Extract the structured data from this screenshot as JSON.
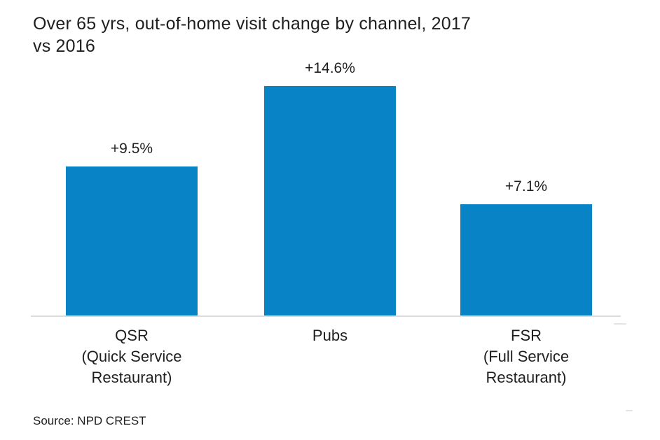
{
  "title_lines": [
    "Over 65 yrs, out-of-home visit change by channel, 2017",
    "vs 2016"
  ],
  "source": "Source: NPD CREST",
  "colors": {
    "bar": "#0884c6",
    "axis": "#dcdcdc",
    "text": "#1f1f1f",
    "background": "#ffffff"
  },
  "chart_data": {
    "type": "bar",
    "title": "Over 65 yrs, out-of-home visit change by channel, 2017 vs 2016",
    "categories": [
      "QSR (Quick Service Restaurant)",
      "Pubs",
      "FSR (Full Service Restaurant)"
    ],
    "values": [
      9.5,
      14.6,
      7.1
    ],
    "value_labels": [
      "+9.5%",
      "+14.6%",
      "+7.1%"
    ],
    "xlabel": "",
    "ylabel": "",
    "ylim": [
      0,
      16
    ],
    "grid": false,
    "legend": false,
    "axis_ticks_visible": false,
    "bar_color": "#0884c6",
    "source": "Source: NPD CREST",
    "bars": [
      {
        "label": "QSR",
        "sublabel": "(Quick Service Restaurant)",
        "value": 9.5,
        "value_label": "+9.5%"
      },
      {
        "label": "Pubs",
        "sublabel": "",
        "value": 14.6,
        "value_label": "+14.6%"
      },
      {
        "label": "FSR",
        "sublabel": "(Full Service Restaurant)",
        "value": 7.1,
        "value_label": "+7.1%"
      }
    ]
  }
}
